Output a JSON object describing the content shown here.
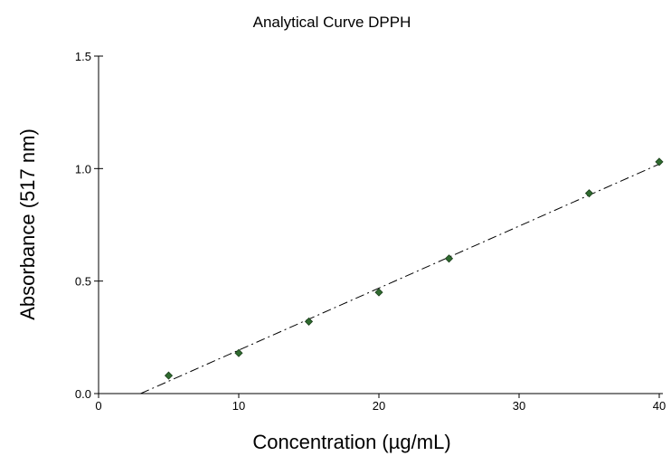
{
  "chart_data": {
    "type": "scatter",
    "title": "Analytical Curve DPPH",
    "xlabel": "Concentration (µg/mL)",
    "ylabel": "Absorbance (517 nm)",
    "xlim": [
      0,
      40
    ],
    "ylim": [
      0,
      1.5
    ],
    "xticks": [
      0,
      10,
      20,
      30,
      40
    ],
    "yticks": [
      0.0,
      0.5,
      1.0,
      1.5
    ],
    "xtick_labels": [
      "0",
      "10",
      "20",
      "30",
      "40"
    ],
    "ytick_labels": [
      "0.0",
      "0.5",
      "1.0",
      "1.5"
    ],
    "grid": false,
    "marker_color": "#2f6b2f",
    "series": [
      {
        "x": [
          5,
          10,
          15,
          20,
          25,
          35,
          40
        ],
        "y": [
          0.08,
          0.18,
          0.32,
          0.45,
          0.6,
          0.89,
          1.03
        ]
      }
    ],
    "fit_line": {
      "style": "dash-dot",
      "x": [
        3,
        40
      ],
      "y": [
        0.0,
        1.02
      ]
    }
  }
}
